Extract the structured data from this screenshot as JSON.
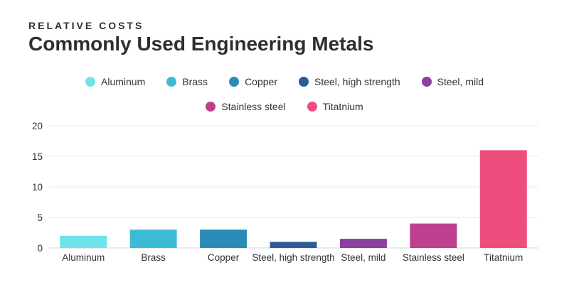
{
  "header": {
    "subtitle": "RELATIVE COSTS",
    "title": "Commonly Used Engineering Metals"
  },
  "legend": {
    "items": [
      {
        "label": "Aluminum",
        "color": "#6fe3ea"
      },
      {
        "label": "Brass",
        "color": "#3dbbd6"
      },
      {
        "label": "Copper",
        "color": "#2a8bb8"
      },
      {
        "label": "Steel, high strength",
        "color": "#2b5c95"
      },
      {
        "label": "Steel, mild",
        "color": "#8b3f9e"
      },
      {
        "label": "Stainless steel",
        "color": "#bc3f90"
      },
      {
        "label": "Titatnium",
        "color": "#ee4e7e"
      }
    ]
  },
  "chart_data": {
    "type": "bar",
    "title": "Commonly Used Engineering Metals",
    "subtitle": "RELATIVE COSTS",
    "xlabel": "",
    "ylabel": "",
    "categories": [
      "Aluminum",
      "Brass",
      "Copper",
      "Steel, high strength",
      "Steel, mild",
      "Stainless steel",
      "Titatnium"
    ],
    "values": [
      2,
      3,
      3,
      1,
      1.5,
      4,
      16
    ],
    "colors": [
      "#6fe3ea",
      "#3dbbd6",
      "#2a8bb8",
      "#2b5c95",
      "#8b3f9e",
      "#bc3f90",
      "#ee4e7e"
    ],
    "ylim": [
      0,
      20
    ],
    "yticks": [
      0,
      5,
      10,
      15,
      20
    ],
    "grid": true,
    "legend_position": "top-center"
  }
}
